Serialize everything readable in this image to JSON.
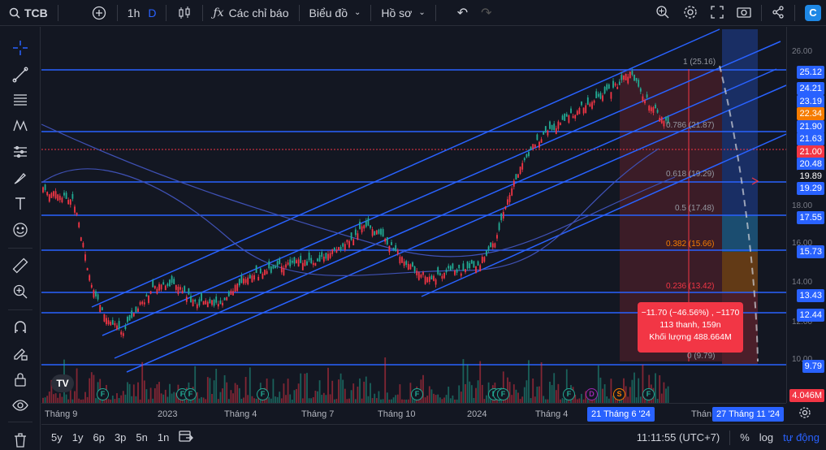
{
  "toolbar": {
    "symbol": "TCB",
    "interval_1h": "1h",
    "interval_d": "D",
    "indicators": "Các chỉ báo",
    "chart_type": "Biểu đồ",
    "profile": "Hồ sơ"
  },
  "price_axis": {
    "ticks": [
      "26.00",
      "18.00",
      "16.00",
      "14.00",
      "12.00",
      "10.00"
    ],
    "labels": [
      {
        "text": "25.12",
        "color": "#2962ff"
      },
      {
        "text": "24.21",
        "color": "#2962ff"
      },
      {
        "text": "23.19",
        "color": "#2962ff"
      },
      {
        "text": "22.34",
        "color": "#f57c00"
      },
      {
        "text": "21.90",
        "color": "#2962ff"
      },
      {
        "text": "21.63",
        "color": "#2962ff"
      },
      {
        "text": "21.00",
        "color": "#f23645"
      },
      {
        "text": "20.48",
        "color": "#2962ff"
      },
      {
        "text": "19.89",
        "color": "#131722"
      },
      {
        "text": "19.29",
        "color": "#2962ff"
      },
      {
        "text": "17.55",
        "color": "#2962ff"
      },
      {
        "text": "15.73",
        "color": "#2962ff"
      },
      {
        "text": "13.43",
        "color": "#2962ff"
      },
      {
        "text": "12.44",
        "color": "#2962ff"
      },
      {
        "text": "9.79",
        "color": "#2962ff"
      },
      {
        "text": "4.046M",
        "color": "#f23645"
      }
    ]
  },
  "fib_levels": [
    {
      "text": "1 (25.16)",
      "color": "#9598a1"
    },
    {
      "text": "0.786 (21.87)",
      "color": "#9598a1"
    },
    {
      "text": "0.618 (19.29)",
      "color": "#9598a1"
    },
    {
      "text": "0.5 (17.48)",
      "color": "#9598a1"
    },
    {
      "text": "0.382 (15.66)",
      "color": "#f57c00"
    },
    {
      "text": "0.236 (13.42)",
      "color": "#f23645"
    },
    {
      "text": "0 (9.79)",
      "color": "#9598a1"
    }
  ],
  "measure_tooltip": {
    "line1": "−11.70 (−46.56%) , −1170",
    "line2": "113 thanh, 159n",
    "line3": "Khối lượng 488.664M"
  },
  "time_axis": {
    "labels": [
      "Tháng 9",
      "2023",
      "Tháng 4",
      "Tháng 7",
      "Tháng 10",
      "2024",
      "Tháng 4",
      "Thán"
    ],
    "badge_start": "21 Tháng 6 '24",
    "badge_end": "27 Tháng 11 '24"
  },
  "events": [
    "F",
    "F",
    "F",
    "F",
    "F",
    "F",
    "F",
    "F",
    "F",
    "D",
    "S",
    "F"
  ],
  "bottom": {
    "ranges": [
      "5y",
      "1y",
      "6p",
      "3p",
      "5n",
      "1n"
    ],
    "clock": "11:11:55 (UTC+7)",
    "percent": "%",
    "log": "log",
    "auto": "tự động"
  },
  "colors": {
    "accent": "#2962ff",
    "up": "#22ab94",
    "down": "#f23645",
    "background": "#131722"
  }
}
